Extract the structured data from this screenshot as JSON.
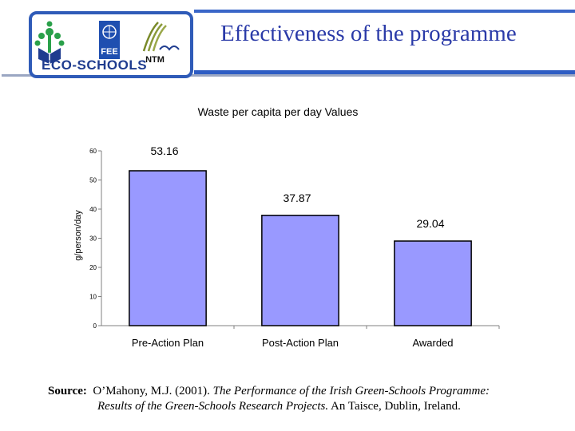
{
  "header": {
    "title": "Effectiveness of the programme",
    "logos": {
      "eco_schools": "ECO-SCHOOLS",
      "fee": "FEE",
      "ntm": "NTM"
    }
  },
  "chart_data": {
    "type": "bar",
    "title": "Waste per capita per day Values",
    "xlabel": "",
    "ylabel": "g/person/day",
    "categories": [
      "Pre-Action Plan",
      "Post-Action Plan",
      "Awarded"
    ],
    "values": [
      53.16,
      37.87,
      29.04
    ],
    "value_labels": [
      "53.16",
      "37.87",
      "29.04"
    ],
    "ylim": [
      0,
      60
    ],
    "yticks": [
      "0",
      "10",
      "20",
      "30",
      "40",
      "50",
      "60"
    ],
    "bar_color": "#9999ff",
    "grid": false
  },
  "source": {
    "label": "Source:",
    "author": "O’Mahony, M.J. (2001).",
    "work_title": "The Performance of the Irish Green-Schools Programme: Results of the Green-Schools Research Projects.",
    "publisher": "An Taisce, Dublin, Ireland.",
    "line1_plain": "O’Mahony, M.J. (2001).",
    "line1_italic": "The Performance of the Irish Green-Schools Programme:",
    "line2_italic": "Results of the Green-Schools Research Projects.",
    "line2_plain": "An Taisce, Dublin, Ireland."
  }
}
